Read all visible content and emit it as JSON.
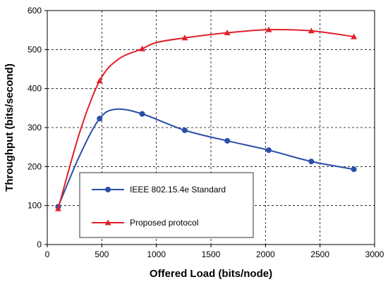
{
  "chart_data": {
    "type": "line",
    "title": "",
    "xlabel": "Offered Load  (bits/node)",
    "ylabel": "Throughput (bits/second)",
    "xlim": [
      0,
      3000
    ],
    "ylim": [
      0,
      600
    ],
    "x_ticks": [
      0,
      500,
      1000,
      1500,
      2000,
      2500,
      3000
    ],
    "y_ticks": [
      0,
      100,
      200,
      300,
      400,
      500,
      600
    ],
    "grid": true,
    "legend_position": "lower-left",
    "series": [
      {
        "name": "IEEE 802.15.4e Standard",
        "color": "#2a4fa8",
        "marker": "circle",
        "x": [
          100,
          480,
          870,
          1260,
          1650,
          2030,
          2420,
          2810
        ],
        "y": [
          97,
          323,
          335,
          293,
          266,
          242,
          213,
          193
        ],
        "curve_via": [
          [
            100,
            97
          ],
          [
            300,
            230
          ],
          [
            480,
            323
          ],
          [
            630,
            347
          ],
          [
            870,
            335
          ],
          [
            1260,
            293
          ],
          [
            1650,
            266
          ],
          [
            2030,
            242
          ],
          [
            2420,
            213
          ],
          [
            2810,
            193
          ]
        ]
      },
      {
        "name": "Proposed protocol",
        "color": "#e0202a",
        "marker": "triangle",
        "x": [
          100,
          480,
          870,
          1260,
          1650,
          2030,
          2420,
          2810
        ],
        "y": [
          92,
          420,
          502,
          530,
          543,
          551,
          548,
          533
        ],
        "curve_via": [
          [
            100,
            92
          ],
          [
            300,
            290
          ],
          [
            480,
            420
          ],
          [
            650,
            475
          ],
          [
            870,
            502
          ],
          [
            1000,
            518
          ],
          [
            1260,
            530
          ],
          [
            1650,
            543
          ],
          [
            2030,
            551
          ],
          [
            2420,
            548
          ],
          [
            2810,
            533
          ]
        ]
      }
    ]
  }
}
